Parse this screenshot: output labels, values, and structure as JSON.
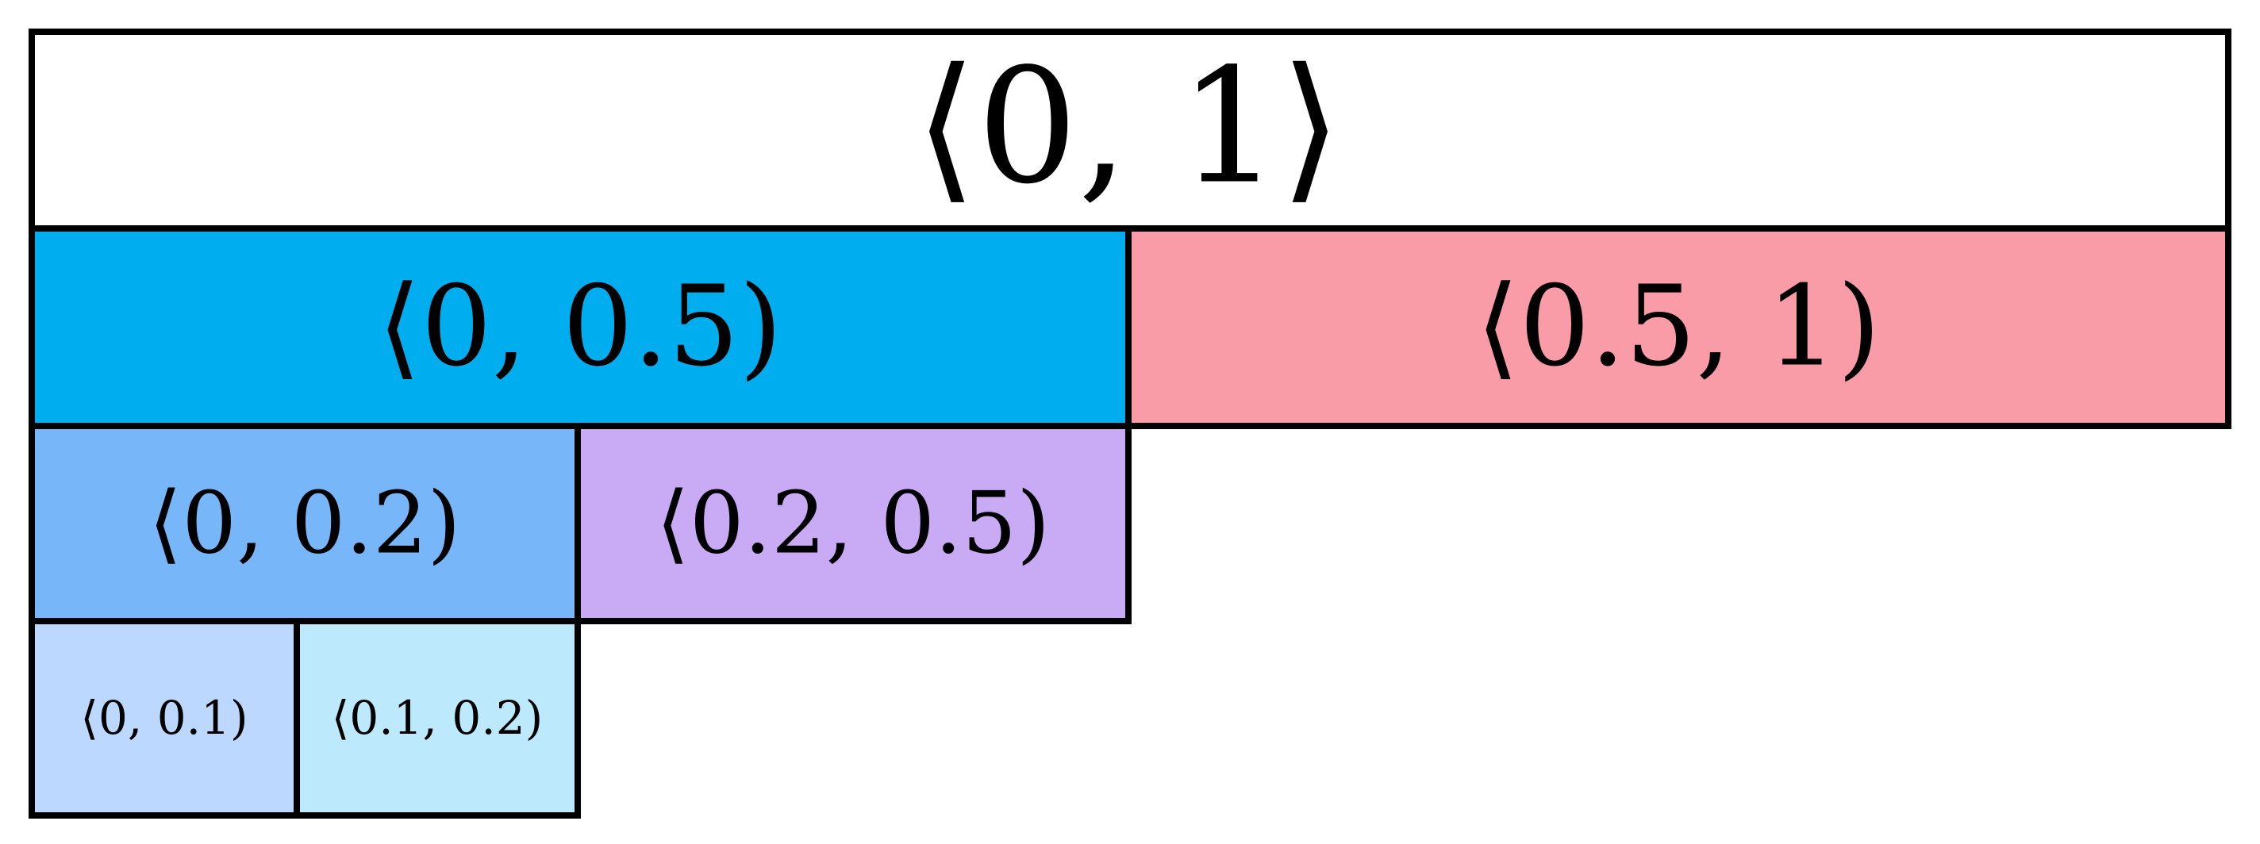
{
  "nodes": [
    {
      "label": "⟨0, 1⟩"
    },
    {
      "label": "⟨0, 0.5)"
    },
    {
      "label": "⟨0.5, 1)"
    },
    {
      "label": "⟨0, 0.2)"
    },
    {
      "label": "⟨0.2, 0.5)"
    },
    {
      "label": "⟨0, 0.1)"
    },
    {
      "label": "⟨0.1, 0.2)"
    }
  ]
}
